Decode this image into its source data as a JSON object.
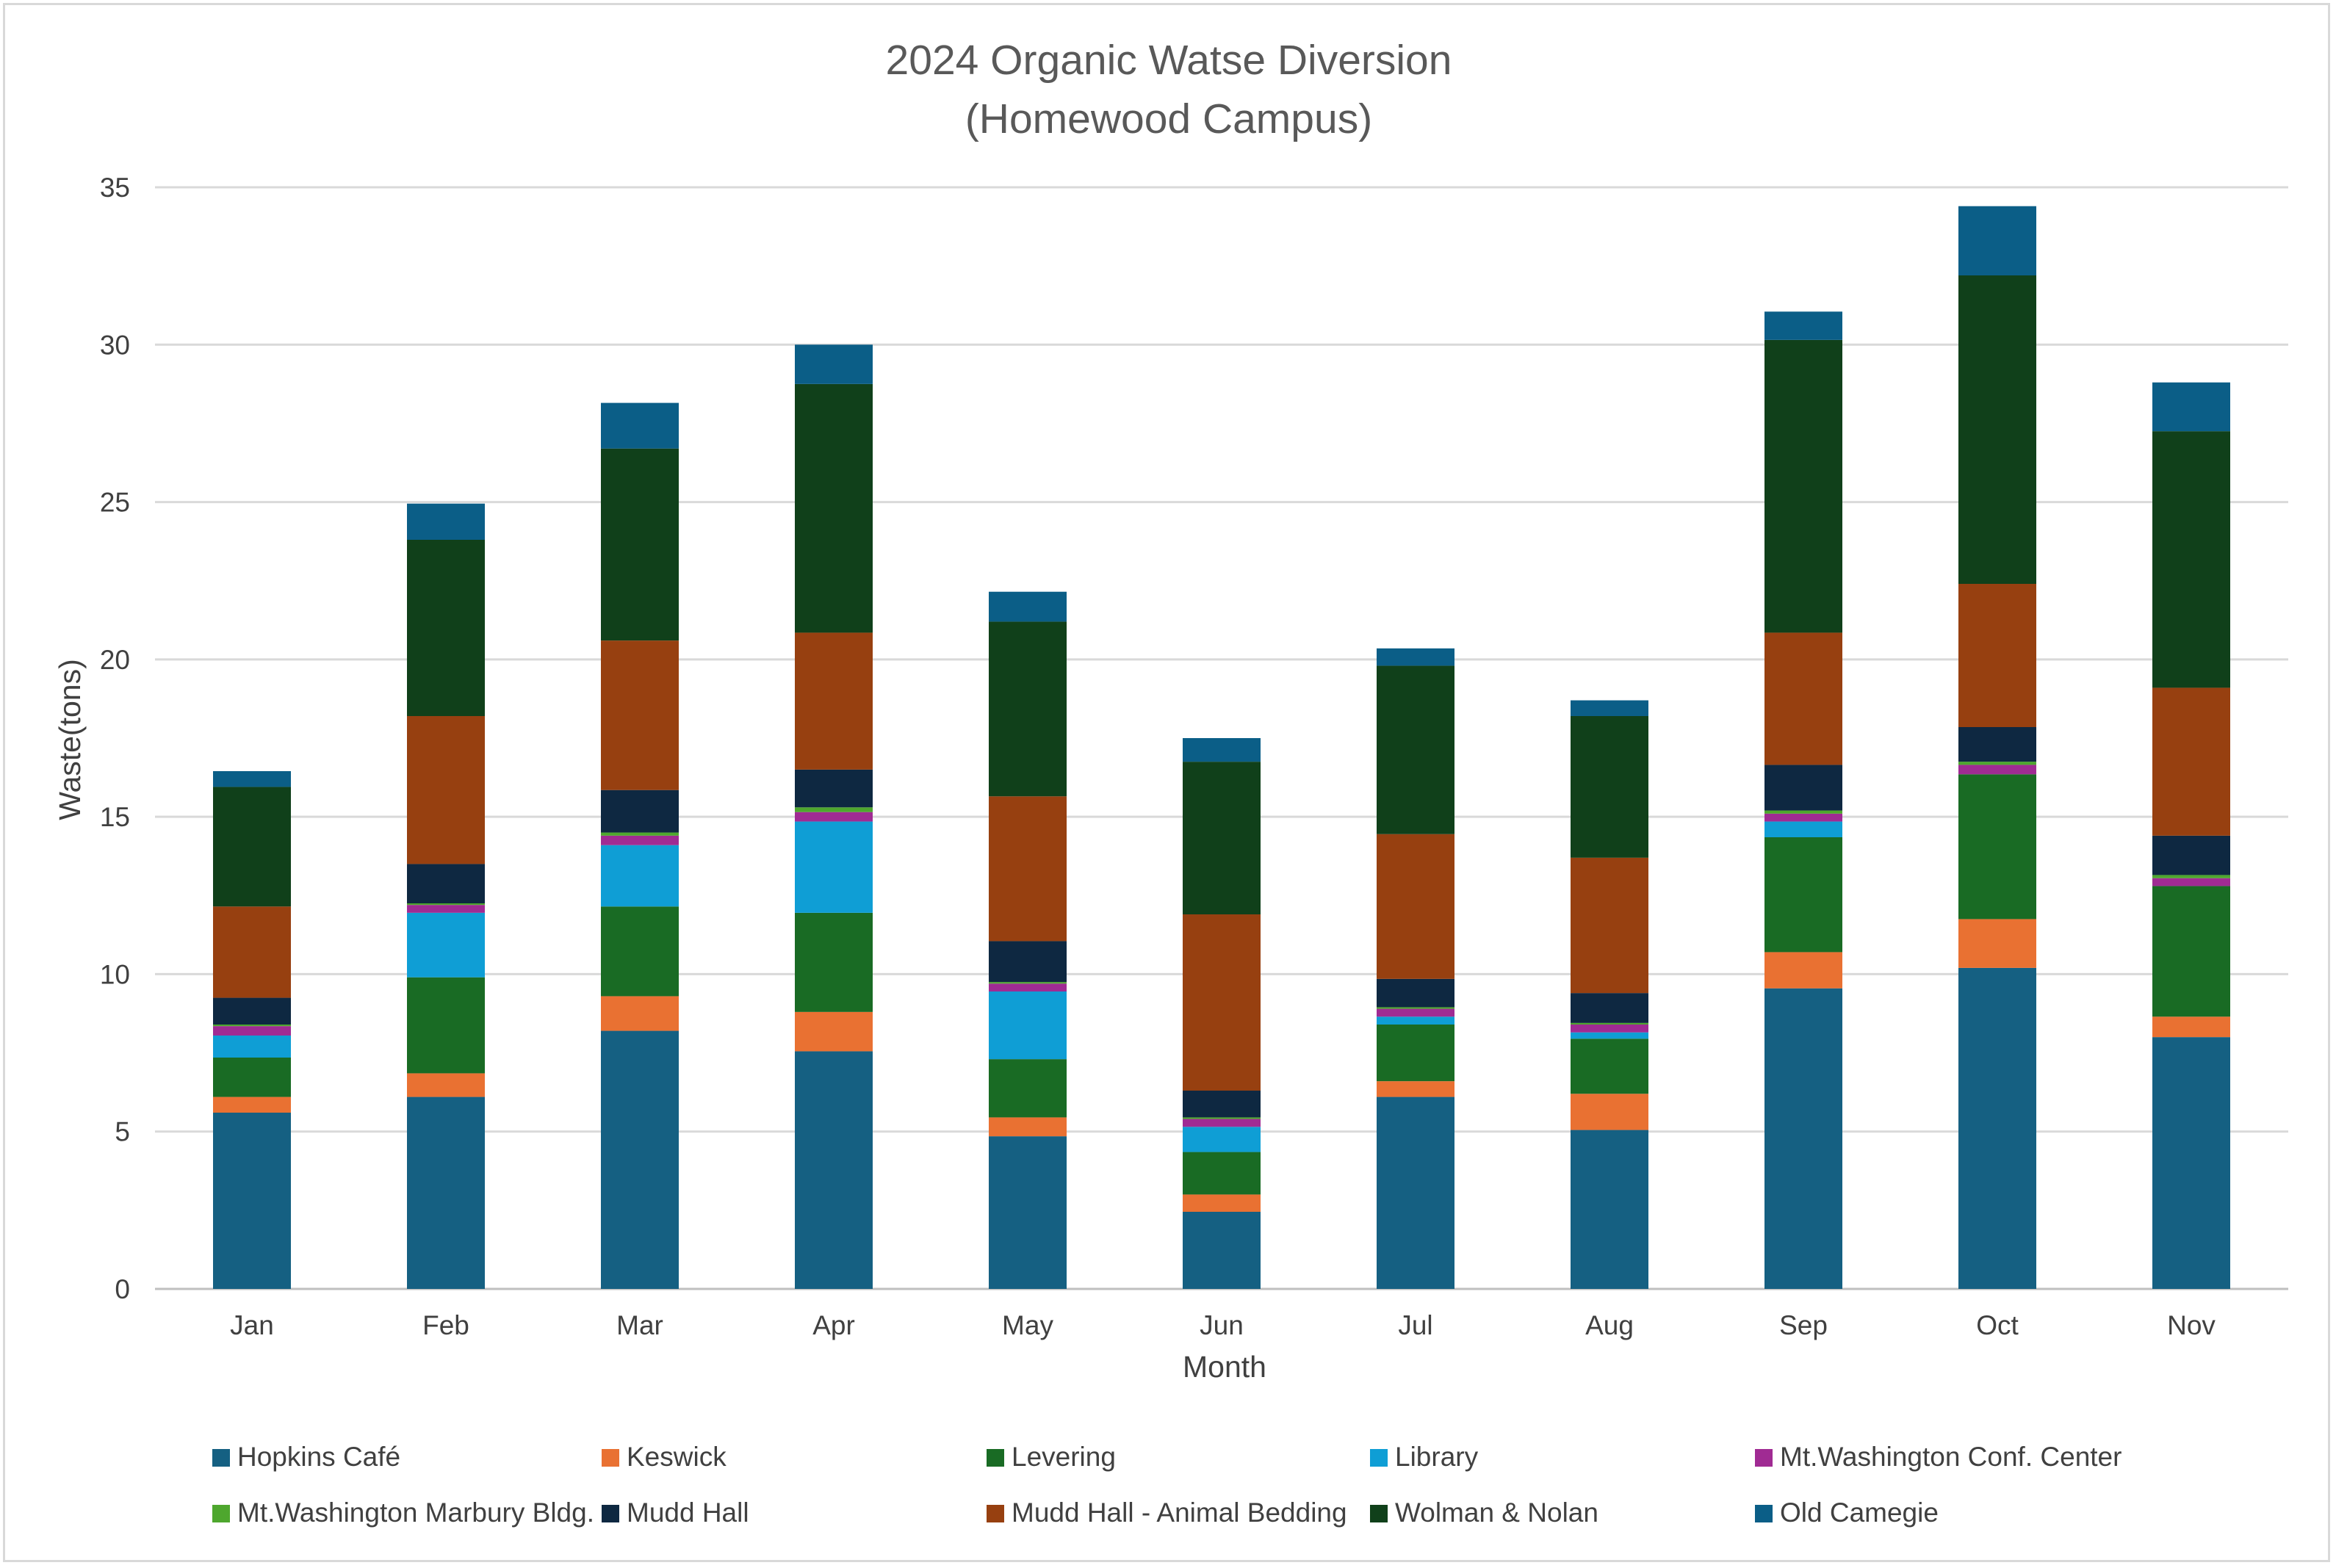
{
  "chart_data": {
    "type": "bar",
    "stacked": true,
    "title_lines": [
      "2024 Organic Watse Diversion",
      "(Homewood Campus)"
    ],
    "xlabel": "Month",
    "ylabel": "Waste(tons)",
    "ylim": [
      0,
      35
    ],
    "yticks": [
      "0",
      "5",
      "10",
      "15",
      "20",
      "25",
      "30",
      "35"
    ],
    "grid": true,
    "legend_position": "bottom",
    "categories": [
      "Jan",
      "Feb",
      "Mar",
      "Apr",
      "May",
      "Jun",
      "Jul",
      "Aug",
      "Sep",
      "Oct",
      "Nov"
    ],
    "series": [
      {
        "name": "Hopkins Café",
        "color": "#156082",
        "values": [
          5.6,
          6.1,
          8.2,
          7.55,
          4.85,
          2.45,
          6.1,
          5.05,
          9.55,
          10.2,
          8.0
        ]
      },
      {
        "name": "Keswick",
        "color": "#E97132",
        "values": [
          0.5,
          0.75,
          1.1,
          1.25,
          0.6,
          0.55,
          0.5,
          1.15,
          1.15,
          1.55,
          0.65
        ]
      },
      {
        "name": "Levering",
        "color": "#196B24",
        "values": [
          1.25,
          3.05,
          2.85,
          3.15,
          1.85,
          1.35,
          1.8,
          1.75,
          3.65,
          4.6,
          4.15
        ]
      },
      {
        "name": "Library",
        "color": "#0F9ED5",
        "values": [
          0.7,
          2.05,
          1.95,
          2.9,
          2.15,
          0.8,
          0.25,
          0.2,
          0.5,
          0.0,
          0.0
        ]
      },
      {
        "name": "Mt.Washington Conf. Center",
        "color": "#A02B93",
        "values": [
          0.3,
          0.25,
          0.3,
          0.3,
          0.25,
          0.25,
          0.25,
          0.25,
          0.25,
          0.3,
          0.25
        ]
      },
      {
        "name": "Mt.Washington Marbury Bldg.",
        "color": "#4EA72E",
        "values": [
          0.05,
          0.05,
          0.1,
          0.15,
          0.05,
          0.05,
          0.05,
          0.05,
          0.1,
          0.1,
          0.1
        ]
      },
      {
        "name": "Mudd Hall",
        "color": "#0E2841",
        "values": [
          0.85,
          1.25,
          1.35,
          1.2,
          1.3,
          0.85,
          0.9,
          0.95,
          1.45,
          1.1,
          1.25
        ]
      },
      {
        "name": "Mudd Hall - Animal Bedding",
        "color": "#974010",
        "values": [
          2.9,
          4.7,
          4.75,
          4.35,
          4.6,
          5.6,
          4.6,
          4.3,
          4.2,
          4.55,
          4.7
        ]
      },
      {
        "name": "Wolman & Nolan",
        "color": "#10401A",
        "values": [
          3.8,
          5.6,
          6.1,
          7.9,
          5.55,
          4.85,
          5.35,
          4.5,
          9.3,
          9.8,
          8.15
        ]
      },
      {
        "name": "Old Camegie",
        "color": "#0B5E87",
        "values": [
          0.5,
          1.15,
          1.45,
          1.25,
          0.95,
          0.75,
          0.55,
          0.5,
          0.9,
          2.2,
          1.55
        ]
      }
    ]
  }
}
